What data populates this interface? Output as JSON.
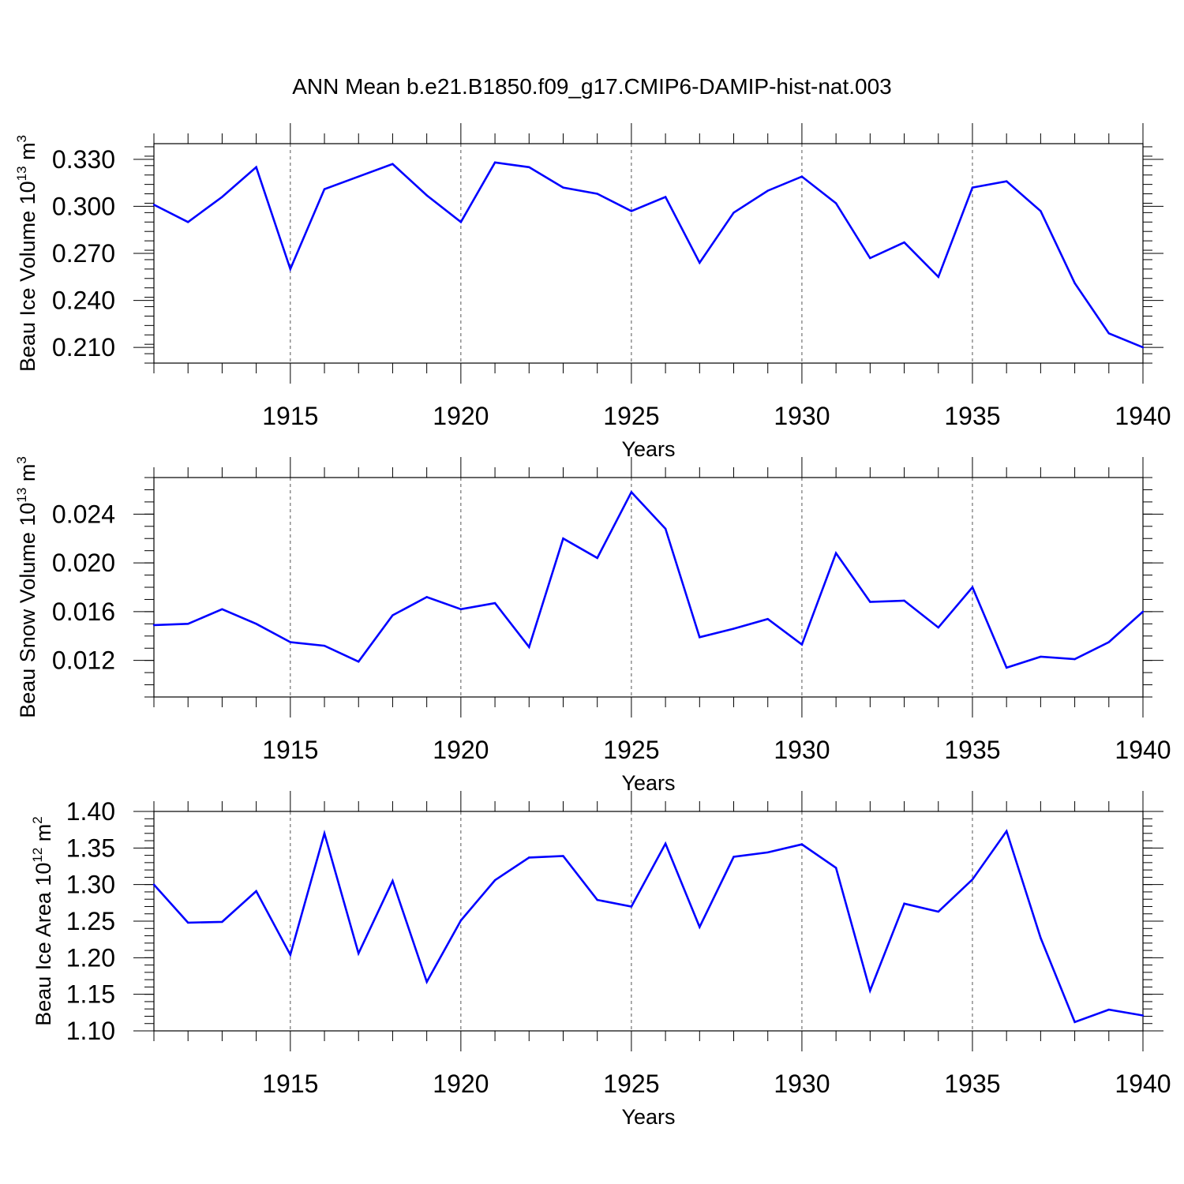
{
  "title": "ANN Mean b.e21.B1850.f09_g17.CMIP6-DAMIP-hist-nat.003",
  "colors": {
    "line": "#0000ff",
    "axis": "#000000",
    "grid": "#555555"
  },
  "chart_data": [
    {
      "type": "line",
      "name": "ice-volume",
      "ylabel": {
        "prefix": "Beau Ice Volume 10",
        "exp": "13",
        "unit": " m",
        "unit_exp": "3"
      },
      "xlabel": "Years",
      "xlim": [
        1911,
        1940
      ],
      "ylim": [
        0.2,
        0.34
      ],
      "xticks": [
        "1915",
        "1920",
        "1925",
        "1930",
        "1935",
        "1940"
      ],
      "yticks": [
        "0.210",
        "0.240",
        "0.270",
        "0.300",
        "0.330"
      ],
      "x": [
        1911,
        1912,
        1913,
        1914,
        1915,
        1916,
        1917,
        1918,
        1919,
        1920,
        1921,
        1922,
        1923,
        1924,
        1925,
        1926,
        1927,
        1928,
        1929,
        1930,
        1931,
        1932,
        1933,
        1934,
        1935,
        1936,
        1937,
        1938,
        1939,
        1940
      ],
      "values": [
        0.301,
        0.29,
        0.306,
        0.325,
        0.26,
        0.311,
        0.319,
        0.327,
        0.307,
        0.29,
        0.328,
        0.325,
        0.312,
        0.308,
        0.297,
        0.306,
        0.264,
        0.296,
        0.31,
        0.319,
        0.302,
        0.267,
        0.277,
        0.255,
        0.312,
        0.316,
        0.297,
        0.251,
        0.219,
        0.21
      ]
    },
    {
      "type": "line",
      "name": "snow-volume",
      "ylabel": {
        "prefix": "Beau Snow Volume 10",
        "exp": "13",
        "unit": " m",
        "unit_exp": "3"
      },
      "xlabel": "Years",
      "xlim": [
        1911,
        1940
      ],
      "ylim": [
        0.009,
        0.027
      ],
      "xticks": [
        "1915",
        "1920",
        "1925",
        "1930",
        "1935",
        "1940"
      ],
      "yticks": [
        "0.012",
        "0.016",
        "0.020",
        "0.024"
      ],
      "x": [
        1911,
        1912,
        1913,
        1914,
        1915,
        1916,
        1917,
        1918,
        1919,
        1920,
        1921,
        1922,
        1923,
        1924,
        1925,
        1926,
        1927,
        1928,
        1929,
        1930,
        1931,
        1932,
        1933,
        1934,
        1935,
        1936,
        1937,
        1938,
        1939,
        1940
      ],
      "values": [
        0.0149,
        0.015,
        0.0162,
        0.015,
        0.0135,
        0.0132,
        0.0119,
        0.0157,
        0.0172,
        0.0162,
        0.0167,
        0.0131,
        0.022,
        0.0204,
        0.0258,
        0.0228,
        0.0139,
        0.0146,
        0.0154,
        0.0133,
        0.0208,
        0.0168,
        0.0169,
        0.0147,
        0.018,
        0.0114,
        0.0123,
        0.0121,
        0.0135,
        0.016
      ]
    },
    {
      "type": "line",
      "name": "ice-area",
      "ylabel": {
        "prefix": "Beau Ice Area 10",
        "exp": "12",
        "unit": " m",
        "unit_exp": "2"
      },
      "xlabel": "Years",
      "xlim": [
        1911,
        1940
      ],
      "ylim": [
        1.1,
        1.4
      ],
      "xticks": [
        "1915",
        "1920",
        "1925",
        "1930",
        "1935",
        "1940"
      ],
      "yticks": [
        "1.10",
        "1.15",
        "1.20",
        "1.25",
        "1.30",
        "1.35",
        "1.40"
      ],
      "x": [
        1911,
        1912,
        1913,
        1914,
        1915,
        1916,
        1917,
        1918,
        1919,
        1920,
        1921,
        1922,
        1923,
        1924,
        1925,
        1926,
        1927,
        1928,
        1929,
        1930,
        1931,
        1932,
        1933,
        1934,
        1935,
        1936,
        1937,
        1938,
        1939,
        1940
      ],
      "values": [
        1.3,
        1.248,
        1.249,
        1.291,
        1.204,
        1.37,
        1.206,
        1.305,
        1.167,
        1.251,
        1.306,
        1.337,
        1.339,
        1.279,
        1.27,
        1.356,
        1.242,
        1.338,
        1.344,
        1.355,
        1.323,
        1.155,
        1.274,
        1.263,
        1.307,
        1.373,
        1.227,
        1.112,
        1.129,
        1.121
      ]
    }
  ]
}
